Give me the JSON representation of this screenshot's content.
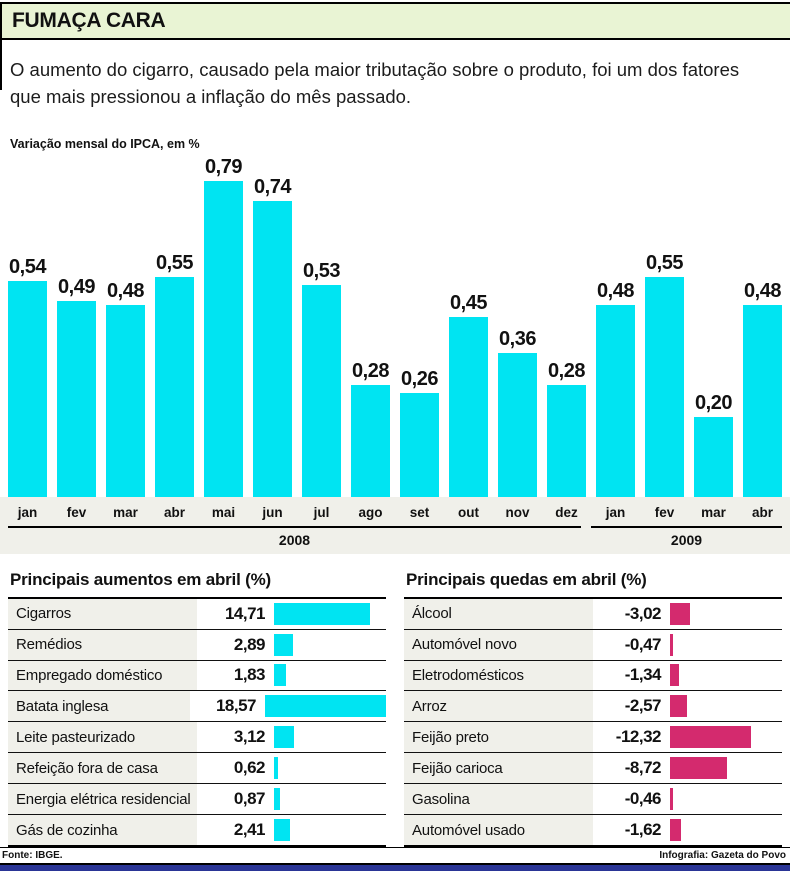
{
  "header": {
    "title": "FUMAÇA CARA"
  },
  "intro": "O aumento do cigarro, causado pela maior tributação sobre o produto, foi um dos fatores que mais pressionou a inflação do mês passado.",
  "chart_data": {
    "type": "bar",
    "title": "Variação mensal do IPCA, em %",
    "categories": [
      "jan",
      "fev",
      "mar",
      "abr",
      "mai",
      "jun",
      "jul",
      "ago",
      "set",
      "out",
      "nov",
      "dez",
      "jan",
      "fev",
      "mar",
      "abr"
    ],
    "values": [
      0.54,
      0.49,
      0.48,
      0.55,
      0.79,
      0.74,
      0.53,
      0.28,
      0.26,
      0.45,
      0.36,
      0.28,
      0.48,
      0.55,
      0.2,
      0.48
    ],
    "value_labels": [
      "0,54",
      "0,49",
      "0,48",
      "0,55",
      "0,79",
      "0,74",
      "0,53",
      "0,28",
      "0,26",
      "0,45",
      "0,36",
      "0,28",
      "0,48",
      "0,55",
      "0,20",
      "0,48"
    ],
    "year_groups": [
      {
        "label": "2008",
        "span": 12
      },
      {
        "label": "2009",
        "span": 4
      }
    ],
    "bar_color": "#00e4f2",
    "ylim": [
      0,
      0.85
    ],
    "grid": false,
    "legend": "none"
  },
  "tables": {
    "increases": {
      "title": "Principais aumentos em abril (%)",
      "bar_color": "#00e4f2",
      "rows": [
        {
          "label": "Cigarros",
          "value_label": "14,71",
          "value": 14.71
        },
        {
          "label": "Remédios",
          "value_label": "2,89",
          "value": 2.89
        },
        {
          "label": "Empregado doméstico",
          "value_label": "1,83",
          "value": 1.83
        },
        {
          "label": "Batata inglesa",
          "value_label": "18,57",
          "value": 18.57
        },
        {
          "label": "Leite pasteurizado",
          "value_label": "3,12",
          "value": 3.12
        },
        {
          "label": "Refeição fora de casa",
          "value_label": "0,62",
          "value": 0.62
        },
        {
          "label": "Energia elétrica residencial",
          "value_label": "0,87",
          "value": 0.87
        },
        {
          "label": "Gás de cozinha",
          "value_label": "2,41",
          "value": 2.41
        }
      ]
    },
    "decreases": {
      "title": "Principais quedas em abril (%)",
      "bar_color": "#d42a6e",
      "rows": [
        {
          "label": "Álcool",
          "value_label": "-3,02",
          "value": -3.02
        },
        {
          "label": "Automóvel novo",
          "value_label": "-0,47",
          "value": -0.47
        },
        {
          "label": "Eletrodomésticos",
          "value_label": "-1,34",
          "value": -1.34
        },
        {
          "label": "Arroz",
          "value_label": "-2,57",
          "value": -2.57
        },
        {
          "label": "Feijão preto",
          "value_label": "-12,32",
          "value": -12.32
        },
        {
          "label": "Feijão carioca",
          "value_label": "-8,72",
          "value": -8.72
        },
        {
          "label": "Gasolina",
          "value_label": "-0,46",
          "value": -0.46
        },
        {
          "label": "Automóvel usado",
          "value_label": "-1,62",
          "value": -1.62
        }
      ]
    }
  },
  "footer": {
    "source": "Fonte: IBGE.",
    "credit": "Infografia: Gazeta do Povo"
  },
  "colors": {
    "header_bg": "#e9f4d4",
    "bar_cyan": "#00e4f2",
    "bar_pink": "#d42a6e",
    "strip_bg": "#f0f0ea",
    "bottom_bar": "#2a3596"
  }
}
